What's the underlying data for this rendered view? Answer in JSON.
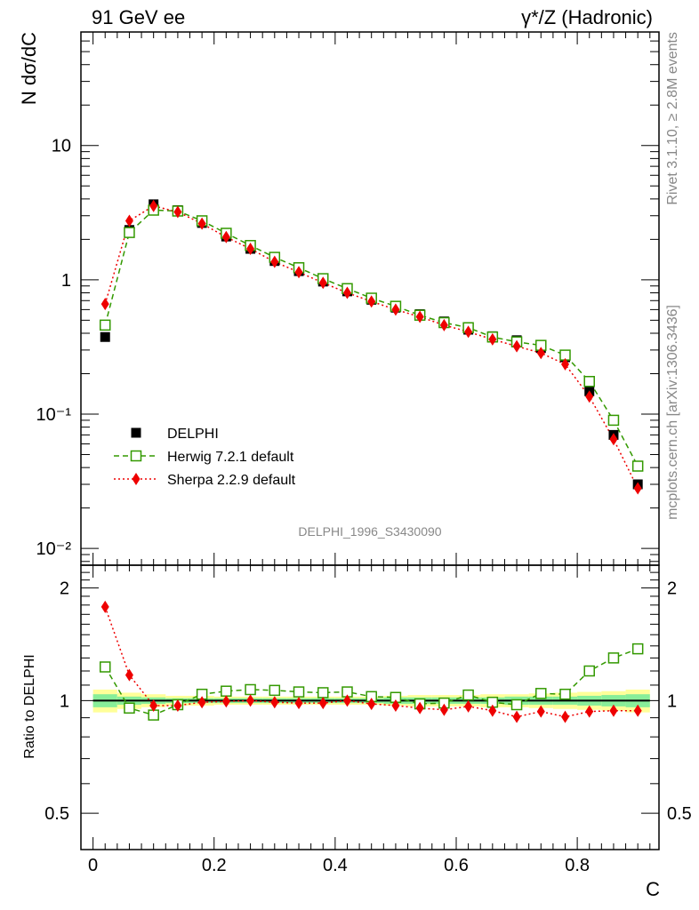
{
  "header": {
    "left": "91 GeV ee",
    "right": "γ*/Z (Hadronic)"
  },
  "side_text": {
    "rivet": "Rivet 3.1.10, ≥ 2.8M events",
    "mcplots": "mcplots.cern.ch [arXiv:1306.3436]"
  },
  "watermark": "DELPHI_1996_S3430090",
  "chart_data": {
    "type": "scatter",
    "xlabel": "C",
    "ylabel": "N dσ/dC",
    "ratio_ylabel": "Ratio to DELPHI",
    "xlim": [
      -0.02,
      0.935
    ],
    "ylim": [
      0.0075,
      70
    ],
    "yscale": "log",
    "ratio_ylim": [
      0.4,
      2.3
    ],
    "ratio_yscale": "log",
    "x_ticks": [
      "0",
      "0.2",
      "0.4",
      "0.6",
      "0.8"
    ],
    "x_tick_values": [
      0,
      0.2,
      0.4,
      0.6,
      0.8
    ],
    "y_ticks": [
      "10⁻²",
      "10⁻¹",
      "1",
      "10"
    ],
    "y_tick_values": [
      0.01,
      0.1,
      1,
      10
    ],
    "ratio_ticks": [
      "0.5",
      "1",
      "2"
    ],
    "ratio_tick_values": [
      0.5,
      1,
      2
    ],
    "x": [
      0.02,
      0.06,
      0.1,
      0.14,
      0.18,
      0.22,
      0.26,
      0.3,
      0.34,
      0.38,
      0.42,
      0.46,
      0.5,
      0.54,
      0.58,
      0.62,
      0.66,
      0.7,
      0.74,
      0.78,
      0.82,
      0.86,
      0.9
    ],
    "series": [
      {
        "name": "DELPHI",
        "color": "#000000",
        "marker": "square-filled",
        "values": [
          0.375,
          2.35,
          3.65,
          3.3,
          2.65,
          2.1,
          1.7,
          1.38,
          1.16,
          0.97,
          0.82,
          0.71,
          0.62,
          0.555,
          0.49,
          0.425,
          0.38,
          0.355,
          0.31,
          0.265,
          0.148,
          0.07,
          0.03
        ]
      },
      {
        "name": "Herwig 7.2.1 default",
        "color": "#339900",
        "marker": "square-open",
        "line": "dashed",
        "values": [
          0.46,
          2.25,
          3.3,
          3.25,
          2.75,
          2.22,
          1.8,
          1.47,
          1.23,
          1.02,
          0.86,
          0.73,
          0.635,
          0.545,
          0.48,
          0.44,
          0.375,
          0.345,
          0.325,
          0.275,
          0.175,
          0.09,
          0.041
        ],
        "ratio": [
          1.23,
          0.955,
          0.915,
          0.975,
          1.04,
          1.06,
          1.07,
          1.065,
          1.055,
          1.05,
          1.055,
          1.025,
          1.02,
          0.98,
          0.985,
          1.035,
          0.99,
          0.975,
          1.045,
          1.04,
          1.2,
          1.3,
          1.375
        ]
      },
      {
        "name": "Sherpa 2.2.9 default",
        "color": "#ee0000",
        "marker": "diamond-filled",
        "line": "dotted",
        "values": [
          0.66,
          2.75,
          3.55,
          3.2,
          2.62,
          2.08,
          1.7,
          1.36,
          1.14,
          0.95,
          0.8,
          0.69,
          0.6,
          0.53,
          0.46,
          0.41,
          0.36,
          0.32,
          0.285,
          0.235,
          0.135,
          0.065,
          0.028
        ],
        "ratio": [
          1.78,
          1.17,
          0.97,
          0.97,
          0.99,
          0.995,
          1.0,
          0.99,
          0.985,
          0.985,
          1.0,
          0.98,
          0.97,
          0.955,
          0.945,
          0.965,
          0.94,
          0.905,
          0.935,
          0.905,
          0.935,
          0.94,
          0.94
        ]
      }
    ],
    "ratio_band": {
      "x_edges": [
        0.0,
        0.04,
        0.08,
        0.12,
        0.16,
        0.2,
        0.24,
        0.28,
        0.32,
        0.36,
        0.4,
        0.44,
        0.48,
        0.52,
        0.56,
        0.6,
        0.64,
        0.68,
        0.72,
        0.76,
        0.8,
        0.84,
        0.88,
        0.92
      ],
      "inner_half_width": [
        0.04,
        0.025,
        0.02,
        0.015,
        0.015,
        0.015,
        0.015,
        0.015,
        0.015,
        0.015,
        0.015,
        0.015,
        0.02,
        0.02,
        0.02,
        0.02,
        0.02,
        0.025,
        0.025,
        0.025,
        0.03,
        0.035,
        0.04
      ],
      "outer_half_width": [
        0.07,
        0.05,
        0.04,
        0.03,
        0.03,
        0.025,
        0.025,
        0.025,
        0.025,
        0.025,
        0.025,
        0.025,
        0.03,
        0.035,
        0.035,
        0.035,
        0.04,
        0.04,
        0.045,
        0.05,
        0.055,
        0.06,
        0.07
      ],
      "inner_color": "#88ee99",
      "outer_color": "#ffff99"
    },
    "legend_position": "lower-left"
  }
}
